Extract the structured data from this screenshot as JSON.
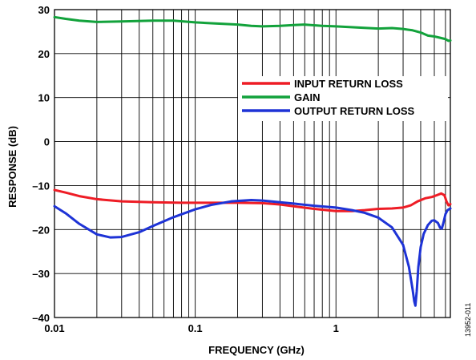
{
  "chart_data": {
    "type": "line",
    "xlabel": "FREQUENCY (GHz)",
    "ylabel": "RESPONSE (dB)",
    "xscale": "log",
    "xlim": [
      0.01,
      6.5
    ],
    "ylim": [
      -40,
      30
    ],
    "grid": true,
    "legend_position": "top-right",
    "x_ticks": [
      {
        "value": 0.01,
        "label": "0.01"
      },
      {
        "value": 0.1,
        "label": "0.1"
      },
      {
        "value": 1,
        "label": "1"
      }
    ],
    "y_ticks": [
      {
        "value": 30,
        "label": "30"
      },
      {
        "value": 20,
        "label": "20"
      },
      {
        "value": 10,
        "label": "10"
      },
      {
        "value": 0,
        "label": "0"
      },
      {
        "value": -10,
        "label": "–10"
      },
      {
        "value": -20,
        "label": "–20"
      },
      {
        "value": -30,
        "label": "–30"
      },
      {
        "value": -40,
        "label": "–40"
      }
    ],
    "series": [
      {
        "name": "INPUT RETURN LOSS",
        "color": "#ee1c25",
        "points": [
          [
            0.01,
            -11
          ],
          [
            0.012,
            -11.6
          ],
          [
            0.015,
            -12.4
          ],
          [
            0.02,
            -13.1
          ],
          [
            0.03,
            -13.6
          ],
          [
            0.05,
            -13.8
          ],
          [
            0.08,
            -13.9
          ],
          [
            0.1,
            -13.9
          ],
          [
            0.15,
            -13.9
          ],
          [
            0.2,
            -13.9
          ],
          [
            0.3,
            -14
          ],
          [
            0.4,
            -14.3
          ],
          [
            0.5,
            -14.7
          ],
          [
            0.7,
            -15.3
          ],
          [
            1,
            -15.8
          ],
          [
            1.3,
            -15.8
          ],
          [
            1.6,
            -15.6
          ],
          [
            2,
            -15.3
          ],
          [
            2.5,
            -15.2
          ],
          [
            3,
            -15
          ],
          [
            3.4,
            -14.5
          ],
          [
            3.8,
            -13.6
          ],
          [
            4.3,
            -12.9
          ],
          [
            4.8,
            -12.6
          ],
          [
            5.2,
            -12.2
          ],
          [
            5.6,
            -11.8
          ],
          [
            5.9,
            -12.2
          ],
          [
            6.1,
            -13.6
          ],
          [
            6.3,
            -14.5
          ],
          [
            6.5,
            -14.2
          ]
        ]
      },
      {
        "name": "GAIN",
        "color": "#12a23b",
        "points": [
          [
            0.01,
            28.3
          ],
          [
            0.012,
            27.9
          ],
          [
            0.015,
            27.5
          ],
          [
            0.02,
            27.2
          ],
          [
            0.03,
            27.3
          ],
          [
            0.05,
            27.5
          ],
          [
            0.07,
            27.5
          ],
          [
            0.1,
            27.1
          ],
          [
            0.13,
            26.9
          ],
          [
            0.2,
            26.6
          ],
          [
            0.25,
            26.3
          ],
          [
            0.3,
            26.2
          ],
          [
            0.4,
            26.3
          ],
          [
            0.5,
            26.5
          ],
          [
            0.6,
            26.6
          ],
          [
            0.8,
            26.3
          ],
          [
            1,
            26.2
          ],
          [
            1.5,
            25.9
          ],
          [
            2,
            25.7
          ],
          [
            2.5,
            25.8
          ],
          [
            3,
            25.6
          ],
          [
            3.5,
            25.3
          ],
          [
            4,
            24.8
          ],
          [
            4.5,
            24.1
          ],
          [
            5,
            23.9
          ],
          [
            5.5,
            23.6
          ],
          [
            6,
            23.3
          ],
          [
            6.3,
            22.9
          ],
          [
            6.5,
            23
          ]
        ]
      },
      {
        "name": "OUTPUT RETURN LOSS",
        "color": "#1e33d6",
        "points": [
          [
            0.01,
            -14.7
          ],
          [
            0.012,
            -16.3
          ],
          [
            0.015,
            -18.7
          ],
          [
            0.02,
            -21.1
          ],
          [
            0.025,
            -21.8
          ],
          [
            0.03,
            -21.7
          ],
          [
            0.04,
            -20.6
          ],
          [
            0.05,
            -19.2
          ],
          [
            0.07,
            -17.2
          ],
          [
            0.1,
            -15.4
          ],
          [
            0.13,
            -14.4
          ],
          [
            0.18,
            -13.6
          ],
          [
            0.25,
            -13.3
          ],
          [
            0.3,
            -13.4
          ],
          [
            0.4,
            -13.8
          ],
          [
            0.5,
            -14.1
          ],
          [
            0.7,
            -14.6
          ],
          [
            1,
            -15
          ],
          [
            1.3,
            -15.6
          ],
          [
            1.6,
            -16.2
          ],
          [
            2,
            -17.3
          ],
          [
            2.5,
            -19.5
          ],
          [
            3,
            -23.5
          ],
          [
            3.3,
            -28.5
          ],
          [
            3.5,
            -33.5
          ],
          [
            3.6,
            -36.3
          ],
          [
            3.67,
            -37.3
          ],
          [
            3.75,
            -34
          ],
          [
            3.85,
            -28.5
          ],
          [
            4,
            -24
          ],
          [
            4.2,
            -21
          ],
          [
            4.5,
            -19
          ],
          [
            4.8,
            -18
          ],
          [
            5,
            -17.9
          ],
          [
            5.3,
            -18.5
          ],
          [
            5.5,
            -19.6
          ],
          [
            5.65,
            -19.8
          ],
          [
            5.8,
            -18.5
          ],
          [
            6,
            -16.5
          ],
          [
            6.2,
            -15.6
          ],
          [
            6.5,
            -15.2
          ]
        ]
      }
    ],
    "annotation": "13952-011"
  }
}
